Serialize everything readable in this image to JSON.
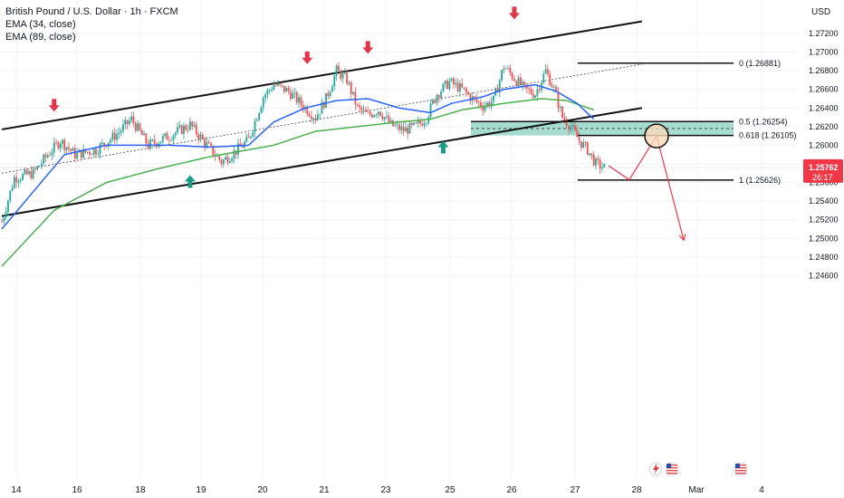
{
  "header": {
    "title": "British Pound / U.S. Dollar · 1h · FXCM",
    "indicators": [
      "EMA (34, close)",
      "EMA (89, close)"
    ]
  },
  "price_axis": {
    "currency": "USD",
    "current_price": "1.25762",
    "countdown": "26:17"
  },
  "fib_labels": [
    "0 (1.26881)",
    "0.5 (1.26254)",
    "0.618 (1.26105)",
    "1 (1.25626)"
  ],
  "colors": {
    "up": "#26a69a",
    "down": "#ef5350",
    "ema34": "#2962ff",
    "ema89": "#4caf50",
    "arrow_down": "#e0364a",
    "arrow_up": "#1b9a84",
    "zone": "#8ad0c0",
    "price_label": "#f23645",
    "target_path": "#f23645"
  },
  "icons": [
    "flash-icon",
    "us-flag-icon",
    "us-flag-icon"
  ],
  "chart_data": {
    "type": "candlestick",
    "title": "British Pound / U.S. Dollar · 1h · FXCM",
    "x_ticks": [
      "14",
      "16",
      "18",
      "19",
      "20",
      "21",
      "23",
      "25",
      "26",
      "27",
      "28",
      "Mar",
      "4"
    ],
    "y_ticks": [
      1.272,
      1.27,
      1.268,
      1.266,
      1.264,
      1.262,
      1.26,
      1.258,
      1.256,
      1.254,
      1.252,
      1.25,
      1.248,
      1.246
    ],
    "ylim": [
      1.2455,
      1.2735
    ],
    "price_anchors": [
      [
        0,
        1.2518
      ],
      [
        6,
        1.2565
      ],
      [
        15,
        1.257
      ],
      [
        22,
        1.259
      ],
      [
        28,
        1.2605
      ],
      [
        35,
        1.259
      ],
      [
        45,
        1.2595
      ],
      [
        55,
        1.2612
      ],
      [
        62,
        1.2628
      ],
      [
        70,
        1.26
      ],
      [
        80,
        1.261
      ],
      [
        90,
        1.2622
      ],
      [
        100,
        1.2595
      ],
      [
        105,
        1.2582
      ],
      [
        112,
        1.2594
      ],
      [
        118,
        1.2606
      ],
      [
        125,
        1.2652
      ],
      [
        130,
        1.2665
      ],
      [
        137,
        1.2658
      ],
      [
        145,
        1.264
      ],
      [
        150,
        1.263
      ],
      [
        155,
        1.265
      ],
      [
        160,
        1.268
      ],
      [
        165,
        1.267
      ],
      [
        170,
        1.264
      ],
      [
        175,
        1.2632
      ],
      [
        180,
        1.2638
      ],
      [
        186,
        1.2622
      ],
      [
        192,
        1.2616
      ],
      [
        198,
        1.262
      ],
      [
        203,
        1.263
      ],
      [
        208,
        1.2655
      ],
      [
        214,
        1.2668
      ],
      [
        220,
        1.266
      ],
      [
        225,
        1.265
      ],
      [
        230,
        1.2642
      ],
      [
        235,
        1.2648
      ],
      [
        240,
        1.2685
      ],
      [
        245,
        1.2672
      ],
      [
        250,
        1.266
      ],
      [
        255,
        1.2655
      ],
      [
        260,
        1.268
      ],
      [
        264,
        1.266
      ],
      [
        268,
        1.263
      ],
      [
        272,
        1.262
      ],
      [
        276,
        1.2605
      ],
      [
        280,
        1.2595
      ],
      [
        284,
        1.258
      ],
      [
        288,
        1.2576
      ]
    ],
    "ema34_anchors": [
      [
        0,
        1.251
      ],
      [
        15,
        1.255
      ],
      [
        30,
        1.259
      ],
      [
        50,
        1.26
      ],
      [
        80,
        1.26
      ],
      [
        100,
        1.2598
      ],
      [
        118,
        1.26
      ],
      [
        130,
        1.2625
      ],
      [
        145,
        1.264
      ],
      [
        160,
        1.2648
      ],
      [
        175,
        1.265
      ],
      [
        190,
        1.264
      ],
      [
        205,
        1.2635
      ],
      [
        215,
        1.2645
      ],
      [
        230,
        1.2652
      ],
      [
        240,
        1.266
      ],
      [
        255,
        1.2665
      ],
      [
        265,
        1.2658
      ],
      [
        275,
        1.2645
      ],
      [
        283,
        1.2628
      ]
    ],
    "ema89_anchors": [
      [
        0,
        1.247
      ],
      [
        25,
        1.253
      ],
      [
        50,
        1.256
      ],
      [
        75,
        1.2575
      ],
      [
        100,
        1.2588
      ],
      [
        130,
        1.26
      ],
      [
        150,
        1.2615
      ],
      [
        170,
        1.262
      ],
      [
        190,
        1.2625
      ],
      [
        205,
        1.2628
      ],
      [
        220,
        1.2638
      ],
      [
        240,
        1.2645
      ],
      [
        258,
        1.265
      ],
      [
        270,
        1.2648
      ],
      [
        283,
        1.2638
      ]
    ],
    "channel_upper": [
      [
        0,
        1.2617
      ],
      [
        306,
        1.2733
      ]
    ],
    "channel_lower": [
      [
        0,
        1.2524
      ],
      [
        306,
        1.264
      ]
    ],
    "channel_mid": [
      [
        0,
        1.257
      ],
      [
        306,
        1.2687
      ]
    ],
    "fib_levels": [
      {
        "ratio": "0",
        "price": 1.26881
      },
      {
        "ratio": "0.5",
        "price": 1.26254
      },
      {
        "ratio": "0.618",
        "price": 1.26105
      },
      {
        "ratio": "1",
        "price": 1.25626
      }
    ],
    "zone": [
      1.26105,
      1.26254
    ],
    "current_price": 1.25762,
    "markers_down": [
      [
        25,
        1.2643
      ],
      [
        146,
        1.2694
      ],
      [
        175,
        1.2705
      ],
      [
        245,
        1.2742
      ]
    ],
    "markers_up": [
      [
        90,
        1.2561
      ],
      [
        211,
        1.2598
      ]
    ],
    "projection_path": [
      [
        290,
        1.2578
      ],
      [
        300,
        1.2563
      ],
      [
        313,
        1.261
      ],
      [
        326,
        1.2498
      ]
    ],
    "projection_circle": [
      313,
      1.261
    ]
  }
}
